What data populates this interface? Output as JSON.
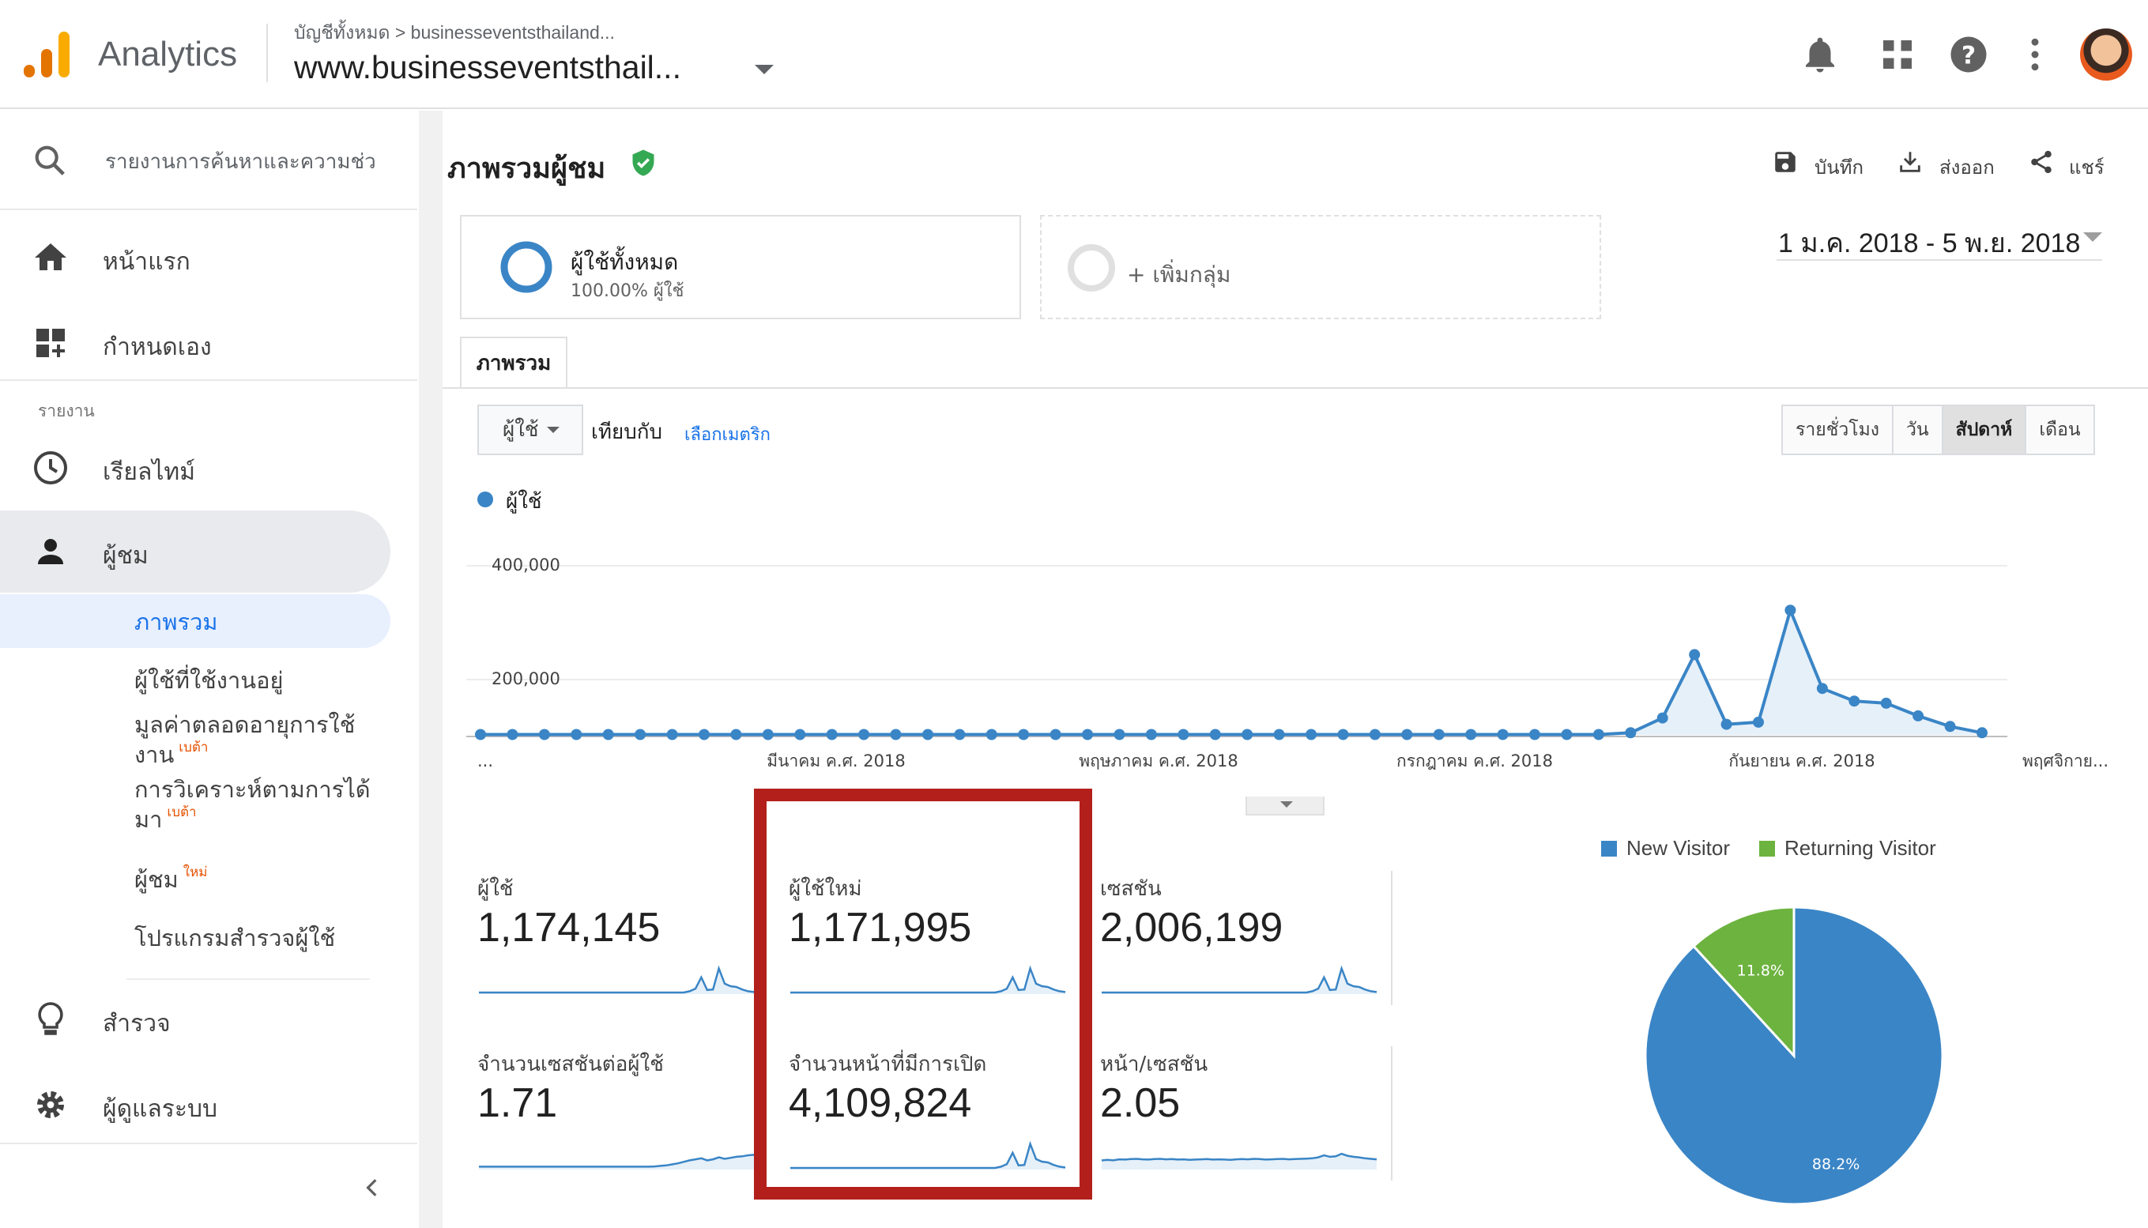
{
  "header": {
    "app_name": "Analytics",
    "breadcrumb": "บัญชีทั้งหมด > businesseventsthailand...",
    "property": "www.businesseventsthail...",
    "icons": [
      "bell-icon",
      "apps-grid-icon",
      "help-icon",
      "more-vert-icon",
      "avatar"
    ]
  },
  "sidebar": {
    "search": "รายงานการค้นหาและความช่ว",
    "home": "หน้าแรก",
    "customize": "กำหนดเอง",
    "reports_label": "รายงาน",
    "realtime": "เรียลไทม์",
    "audience": "ผู้ชม",
    "audience_sub": {
      "overview": "ภาพรวม",
      "active_users": "ผู้ใช้ที่ใช้งานอยู่",
      "lifetime_value_line1": "มูลค่าตลอดอายุการใช้",
      "lifetime_value_line2": "งาน",
      "lifetime_value_badge": "เบต้า",
      "cohort_line1": "การวิเคราะห์ตามการได้",
      "cohort_line2": "มา",
      "cohort_badge": "เบต้า",
      "audiences": "ผู้ชม",
      "audiences_badge": "ใหม่",
      "user_explorer": "โปรแกรมสำรวจผู้ใช้"
    },
    "discover": "สำรวจ",
    "admin": "ผู้ดูแลระบบ"
  },
  "main": {
    "title": "ภาพรวมผู้ชม",
    "actions": {
      "save": "บันทึก",
      "export": "ส่งออก",
      "share": "แชร์"
    },
    "segment": {
      "name": "ผู้ใช้ทั้งหมด",
      "percent": "100.00% ผู้ใช้"
    },
    "add_segment": "+ เพิ่มกลุ่ม",
    "date_range": "1 ม.ค. 2018 - 5 พ.ย. 2018",
    "tab": "ภาพรวม",
    "metric_dropdown": "ผู้ใช้",
    "compare_label": "เทียบกับ",
    "select_metric": "เลือกเมตริก",
    "periods": [
      "รายชั่วโมง",
      "วัน",
      "สัปดาห์",
      "เดือน"
    ],
    "active_period": "สัปดาห์",
    "legend": "ผู้ใช้"
  },
  "chart_data": {
    "type": "line",
    "series": [
      {
        "name": "ผู้ใช้",
        "values": [
          1000,
          1000,
          1000,
          1000,
          1000,
          1000,
          1000,
          1000,
          1000,
          1000,
          1000,
          1000,
          1000,
          1000,
          1000,
          1000,
          1000,
          1000,
          1000,
          1000,
          1000,
          1000,
          1000,
          1000,
          1000,
          1000,
          1000,
          1000,
          1000,
          1000,
          1000,
          1000,
          1000,
          1000,
          1000,
          1000,
          5000,
          40000,
          190000,
          25000,
          30000,
          295000,
          110000,
          80000,
          75000,
          45000,
          20000,
          5000
        ]
      }
    ],
    "y_ticks": [
      "400,000",
      "200,000"
    ],
    "ylim": [
      0,
      400000
    ],
    "x_labels": [
      "...",
      "มีนาคม ค.ศ. 2018",
      "พฤษภาคม ค.ศ. 2018",
      "กรกฎาคม ค.ศ. 2018",
      "กันยายน ค.ศ. 2018",
      "พฤศจิกาย..."
    ],
    "color": "#3a85c6"
  },
  "metrics": [
    {
      "label": "ผู้ใช้",
      "value": "1,174,145"
    },
    {
      "label": "ผู้ใช้ใหม่",
      "value": "1,171,995"
    },
    {
      "label": "เซสชัน",
      "value": "2,006,199"
    },
    {
      "label": "จำนวนเซสชันต่อผู้ใช้",
      "value": "1.71"
    },
    {
      "label": "จำนวนหน้าที่มีการเปิด",
      "value": "4,109,824"
    },
    {
      "label": "หน้า/เซสชัน",
      "value": "2.05"
    }
  ],
  "pie": {
    "type": "pie",
    "legend": [
      "New Visitor",
      "Returning Visitor"
    ],
    "values": [
      88.2,
      11.8
    ],
    "labels": [
      "88.2%",
      "11.8%"
    ],
    "colors": [
      "#3a85c6",
      "#6db33f"
    ]
  }
}
